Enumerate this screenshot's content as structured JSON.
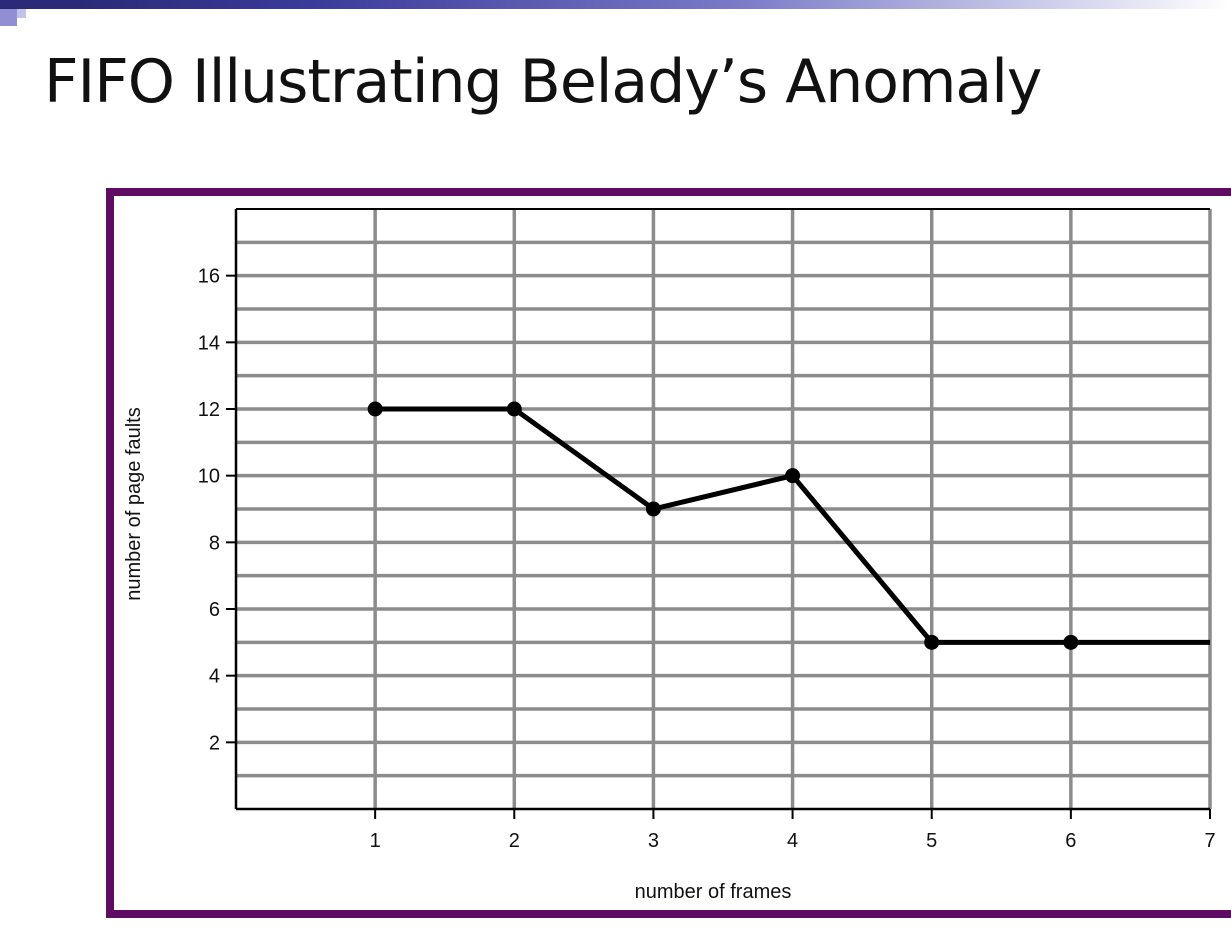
{
  "slide": {
    "title": "FIFO Illustrating Belady’s Anomaly"
  },
  "colors": {
    "frame": "#5e0c63",
    "grid": "#8c8c8c",
    "line": "#000000",
    "title_bar": "#2a2a78",
    "corner_accent": "#8f8fd2"
  },
  "chart_data": {
    "type": "line",
    "title": "",
    "xlabel": "number of frames",
    "ylabel": "number of page faults",
    "x_ticks": [
      1,
      2,
      3,
      4,
      5,
      6,
      7
    ],
    "y_ticks": [
      2,
      4,
      6,
      8,
      10,
      12,
      14,
      16
    ],
    "xlim": [
      0,
      7
    ],
    "ylim": [
      0,
      18
    ],
    "grid": true,
    "legend": "none",
    "series": [
      {
        "x": [
          1,
          2,
          3,
          4,
          5,
          6,
          7
        ],
        "y": [
          12,
          12,
          9,
          10,
          5,
          5,
          5
        ],
        "markers": [
          true,
          true,
          true,
          true,
          true,
          true,
          false
        ]
      }
    ]
  }
}
